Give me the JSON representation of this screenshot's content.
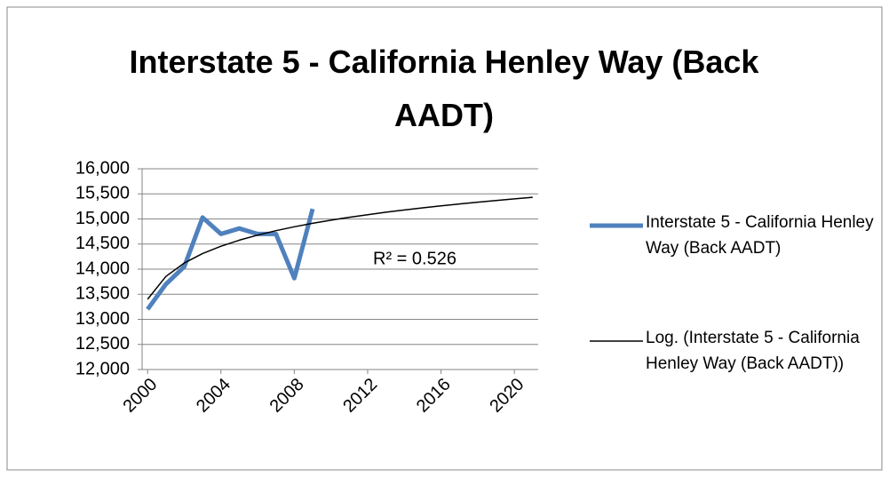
{
  "chart_data": {
    "type": "line",
    "title": "Interstate 5 - California Henley Way (Back AADT)",
    "series": [
      {
        "name": "Interstate 5 - California Henley Way (Back AADT)",
        "color": "#4f81bd",
        "x": [
          2000,
          2001,
          2002,
          2003,
          2004,
          2005,
          2006,
          2007,
          2008,
          2009
        ],
        "values": [
          13200,
          13700,
          14050,
          15030,
          14700,
          14810,
          14700,
          14700,
          13820,
          15200
        ]
      },
      {
        "name": "Log. (Interstate 5 - California Henley Way (Back AADT))",
        "color": "#000000",
        "x": [
          2000,
          2001,
          2002,
          2003,
          2004,
          2005,
          2006,
          2007,
          2008,
          2009,
          2010,
          2011,
          2012,
          2013,
          2014,
          2015,
          2016,
          2017,
          2018,
          2019,
          2020,
          2021
        ],
        "values": [
          13400,
          13855,
          14122,
          14311,
          14457,
          14577,
          14678,
          14766,
          14844,
          14913,
          14975,
          15033,
          15085,
          15134,
          15179,
          15222,
          15261,
          15299,
          15334,
          15368,
          15400,
          15431
        ]
      }
    ],
    "annotation": "R² = 0.526",
    "xlim": [
      1999.7,
      2021.3
    ],
    "xticks": [
      2000,
      2004,
      2008,
      2012,
      2016,
      2020
    ],
    "ylim": [
      12000,
      16000
    ],
    "yticks": [
      {
        "value": 12000,
        "label": "12,000"
      },
      {
        "value": 12500,
        "label": "12,500"
      },
      {
        "value": 13000,
        "label": "13,000"
      },
      {
        "value": 13500,
        "label": "13,500"
      },
      {
        "value": 14000,
        "label": "14,000"
      },
      {
        "value": 14500,
        "label": "14,500"
      },
      {
        "value": 15000,
        "label": "15,000"
      },
      {
        "value": 15500,
        "label": "15,500"
      },
      {
        "value": 16000,
        "label": "16,000"
      }
    ],
    "grid": true,
    "legend": "right"
  }
}
